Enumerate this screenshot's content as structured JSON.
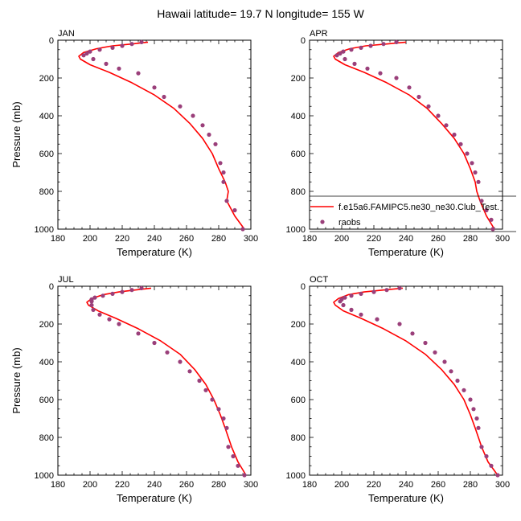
{
  "figure": {
    "title": "Hawaii  latitude= 19.7 N longitude= 155 W"
  },
  "legend": {
    "entries": [
      {
        "label": "f.e15a6.FAMIPC5.ne30_ne30.Club_Test.",
        "color": "#ff0000",
        "kind": "line"
      },
      {
        "label": "raobs",
        "color": "#9a3f7a",
        "kind": "marker"
      }
    ]
  },
  "chart_data": [
    {
      "type": "line",
      "panel": "JAN",
      "xlabel": "Temperature (K)",
      "ylabel": "Pressure (mb)",
      "xlim": [
        180,
        300
      ],
      "ylim": [
        0,
        1000
      ],
      "y_inverted": true,
      "xticks": [
        180,
        200,
        220,
        240,
        260,
        280,
        300
      ],
      "yticks": [
        0,
        200,
        400,
        600,
        800,
        1000
      ],
      "series": [
        {
          "name": "f.e15a6.FAMIPC5.ne30_ne30.Club_Test.",
          "kind": "line",
          "color": "#ff0000",
          "x": [
            236,
            226,
            214,
            204,
            196,
            193,
            194,
            200,
            212,
            226,
            240,
            252,
            262,
            270,
            276,
            280,
            284,
            286,
            285,
            290,
            296
          ],
          "y": [
            10,
            20,
            30,
            45,
            65,
            85,
            100,
            130,
            170,
            225,
            290,
            360,
            440,
            520,
            600,
            680,
            750,
            800,
            850,
            930,
            1000
          ]
        },
        {
          "name": "raobs",
          "kind": "scatter",
          "color": "#9a3f7a",
          "x": [
            232,
            226,
            220,
            214,
            206,
            200,
            198,
            196,
            202,
            210,
            218,
            230,
            240,
            246,
            256,
            264,
            270,
            274,
            278,
            281,
            283,
            283,
            285,
            290,
            295
          ],
          "y": [
            10,
            20,
            30,
            40,
            50,
            60,
            70,
            80,
            100,
            125,
            150,
            175,
            250,
            300,
            350,
            400,
            450,
            500,
            550,
            650,
            700,
            750,
            850,
            900,
            1000
          ]
        }
      ]
    },
    {
      "type": "line",
      "panel": "APR",
      "xlabel": "Temperature (K)",
      "ylabel": "",
      "xlim": [
        180,
        300
      ],
      "ylim": [
        0,
        1000
      ],
      "y_inverted": true,
      "xticks": [
        180,
        200,
        220,
        240,
        260,
        280,
        300
      ],
      "yticks": [
        0,
        200,
        400,
        600,
        800,
        1000
      ],
      "series": [
        {
          "name": "f.e15a6.FAMIPC5.ne30_ne30.Club_Test.",
          "kind": "line",
          "color": "#ff0000",
          "x": [
            240,
            228,
            215,
            205,
            198,
            195,
            196,
            202,
            214,
            228,
            242,
            253,
            262,
            270,
            276,
            280,
            283,
            284,
            286,
            290,
            295
          ],
          "y": [
            10,
            20,
            30,
            45,
            65,
            85,
            100,
            130,
            170,
            225,
            290,
            360,
            440,
            520,
            600,
            680,
            750,
            800,
            850,
            930,
            1000
          ]
        },
        {
          "name": "raobs",
          "kind": "scatter",
          "color": "#9a3f7a",
          "x": [
            234,
            226,
            218,
            212,
            206,
            201,
            199,
            197,
            202,
            208,
            216,
            224,
            234,
            242,
            248,
            254,
            260,
            265,
            270,
            274,
            278,
            281,
            283,
            285,
            287,
            290,
            293,
            294
          ],
          "y": [
            10,
            20,
            30,
            40,
            50,
            60,
            70,
            80,
            100,
            125,
            150,
            175,
            200,
            250,
            300,
            350,
            400,
            450,
            500,
            550,
            600,
            650,
            700,
            750,
            850,
            900,
            950,
            1000
          ]
        }
      ]
    },
    {
      "type": "line",
      "panel": "JUL",
      "xlabel": "Temperature (K)",
      "ylabel": "Pressure (mb)",
      "xlim": [
        180,
        300
      ],
      "ylim": [
        0,
        1000
      ],
      "y_inverted": true,
      "xticks": [
        180,
        200,
        220,
        240,
        260,
        280,
        300
      ],
      "yticks": [
        0,
        200,
        400,
        600,
        800,
        1000
      ],
      "series": [
        {
          "name": "f.e15a6.FAMIPC5.ne30_ne30.Club_Test.",
          "kind": "line",
          "color": "#ff0000",
          "x": [
            238,
            228,
            218,
            208,
            201,
            198,
            199,
            205,
            216,
            230,
            244,
            256,
            265,
            272,
            277,
            281,
            284,
            286,
            288,
            292,
            297
          ],
          "y": [
            10,
            20,
            30,
            45,
            65,
            85,
            100,
            130,
            170,
            225,
            290,
            360,
            440,
            520,
            600,
            680,
            750,
            800,
            850,
            930,
            1000
          ]
        },
        {
          "name": "raobs",
          "kind": "scatter",
          "color": "#9a3f7a",
          "x": [
            232,
            226,
            220,
            214,
            208,
            203,
            201,
            201,
            201,
            202,
            206,
            212,
            218,
            230,
            240,
            248,
            256,
            262,
            268,
            272,
            276,
            280,
            283,
            285,
            286,
            289,
            292,
            296
          ],
          "y": [
            10,
            20,
            30,
            40,
            50,
            60,
            70,
            80,
            100,
            125,
            150,
            175,
            200,
            250,
            300,
            350,
            400,
            450,
            500,
            550,
            600,
            650,
            700,
            750,
            850,
            900,
            950,
            1000
          ]
        }
      ]
    },
    {
      "type": "line",
      "panel": "OCT",
      "xlabel": "Temperature (K)",
      "ylabel": "",
      "xlim": [
        180,
        300
      ],
      "ylim": [
        0,
        1000
      ],
      "y_inverted": true,
      "xticks": [
        180,
        200,
        220,
        240,
        260,
        280,
        300
      ],
      "yticks": [
        0,
        200,
        400,
        600,
        800,
        1000
      ],
      "series": [
        {
          "name": "f.e15a6.FAMIPC5.ne30_ne30.Club_Test.",
          "kind": "line",
          "color": "#ff0000",
          "x": [
            238,
            226,
            214,
            204,
            198,
            195,
            196,
            201,
            212,
            226,
            240,
            252,
            262,
            270,
            276,
            280,
            283,
            285,
            287,
            291,
            297
          ],
          "y": [
            10,
            20,
            30,
            45,
            65,
            85,
            100,
            130,
            170,
            225,
            290,
            360,
            440,
            520,
            600,
            680,
            750,
            800,
            850,
            930,
            1000
          ]
        },
        {
          "name": "raobs",
          "kind": "scatter",
          "color": "#9a3f7a",
          "x": [
            236,
            228,
            220,
            212,
            206,
            202,
            200,
            199,
            201,
            206,
            212,
            222,
            236,
            244,
            252,
            258,
            264,
            268,
            272,
            276,
            280,
            282,
            284,
            285,
            287,
            290,
            293,
            297
          ],
          "y": [
            10,
            20,
            30,
            40,
            50,
            60,
            70,
            80,
            100,
            125,
            150,
            175,
            200,
            250,
            300,
            350,
            400,
            450,
            500,
            550,
            600,
            650,
            700,
            750,
            850,
            900,
            950,
            1000
          ]
        }
      ]
    }
  ]
}
